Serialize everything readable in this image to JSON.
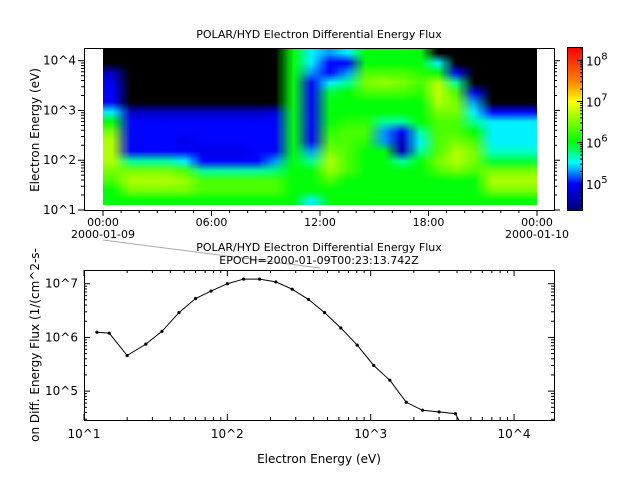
{
  "chart_data": [
    {
      "type": "heatmap",
      "title": "POLAR/HYD  Electron Differential Energy Flux",
      "xlabel": "",
      "ylabel": "Electron Energy (eV)",
      "x_ticks": [
        {
          "time": "00:00",
          "date": "2000-01-09"
        },
        {
          "time": "06:00",
          "date": ""
        },
        {
          "time": "12:00",
          "date": ""
        },
        {
          "time": "18:00",
          "date": ""
        },
        {
          "time": "00:00",
          "date": "2000-01-10"
        }
      ],
      "xlim_hours": [
        0,
        24
      ],
      "ylim": [
        10,
        18000
      ],
      "y_log": true,
      "y_ticks": [
        "10^1",
        "10^2",
        "10^3",
        "10^4"
      ],
      "colorbar": {
        "log": true,
        "range": [
          23000,
          200000000
        ],
        "ticks": [
          "10^5",
          "10^6",
          "10^7",
          "10^8"
        ],
        "colormap": [
          "#00007f",
          "#0000ff",
          "#00ffff",
          "#00ff00",
          "#ffff00",
          "#ff8000",
          "#ff0000"
        ],
        "missing_color": "#000000"
      },
      "energies": [
        13,
        20,
        30,
        50,
        80,
        130,
        200,
        320,
        500,
        800,
        1300,
        2000,
        3200,
        5000,
        8000,
        13000
      ],
      "hours": [
        0.5,
        1.5,
        2.5,
        3.5,
        4.5,
        5.5,
        6.5,
        7.5,
        8.5,
        9.5,
        10.5,
        11.5,
        12.5,
        13.5,
        14.5,
        15.5,
        16.5,
        17.5,
        18.5,
        19.5,
        20.5,
        21.5,
        22.5,
        23.5
      ],
      "flux_by_hour": [
        [
          1000000.0,
          1000000.0,
          2000000.0,
          3000000.0,
          5000000.0,
          5000000.0,
          5000000.0,
          3000000.0,
          1000000.0,
          300000.0,
          100000.0,
          100000.0,
          80000.0,
          50000.0,
          null,
          null
        ],
        [
          1000000.0,
          3000000.0,
          5000000.0,
          3000000.0,
          500000.0,
          100000.0,
          100000.0,
          100000.0,
          100000.0,
          50000.0,
          null,
          null,
          null,
          null,
          null,
          null
        ],
        [
          1000000.0,
          3000000.0,
          5000000.0,
          3000000.0,
          500000.0,
          100000.0,
          100000.0,
          100000.0,
          100000.0,
          50000.0,
          null,
          null,
          null,
          null,
          null,
          null
        ],
        [
          1000000.0,
          3000000.0,
          5000000.0,
          3000000.0,
          500000.0,
          100000.0,
          100000.0,
          100000.0,
          100000.0,
          50000.0,
          null,
          null,
          null,
          null,
          null,
          null
        ],
        [
          1000000.0,
          3000000.0,
          4000000.0,
          2000000.0,
          300000.0,
          100000.0,
          80000.0,
          100000.0,
          100000.0,
          50000.0,
          null,
          null,
          null,
          null,
          null,
          null
        ],
        [
          1000000.0,
          2000000.0,
          2000000.0,
          500000.0,
          100000.0,
          80000.0,
          100000.0,
          100000.0,
          100000.0,
          50000.0,
          null,
          null,
          null,
          null,
          null,
          null
        ],
        [
          1000000.0,
          2000000.0,
          2000000.0,
          500000.0,
          100000.0,
          80000.0,
          100000.0,
          100000.0,
          100000.0,
          50000.0,
          null,
          null,
          null,
          null,
          null,
          null
        ],
        [
          1000000.0,
          2000000.0,
          2000000.0,
          500000.0,
          100000.0,
          80000.0,
          100000.0,
          100000.0,
          100000.0,
          50000.0,
          null,
          null,
          null,
          null,
          null,
          null
        ],
        [
          1000000.0,
          2000000.0,
          2000000.0,
          500000.0,
          100000.0,
          100000.0,
          100000.0,
          100000.0,
          100000.0,
          50000.0,
          null,
          null,
          null,
          null,
          null,
          null
        ],
        [
          1000000.0,
          2000000.0,
          2000000.0,
          600000.0,
          200000.0,
          100000.0,
          100000.0,
          100000.0,
          100000.0,
          60000.0,
          null,
          null,
          null,
          null,
          null,
          null
        ],
        [
          1000000.0,
          1000000.0,
          1000000.0,
          1000000.0,
          1000000.0,
          1000000.0,
          1000000.0,
          1000000.0,
          1000000.0,
          1000000.0,
          1000000.0,
          1000000.0,
          1000000.0,
          1000000.0,
          1000000.0,
          1000000.0
        ],
        [
          300000.0,
          1000000.0,
          1000000.0,
          1000000.0,
          500000.0,
          200000.0,
          100000.0,
          100000.0,
          100000.0,
          100000.0,
          100000.0,
          100000.0,
          100000.0,
          200000.0,
          300000.0,
          300000.0
        ],
        [
          1000000.0,
          1000000.0,
          2000000.0,
          4000000.0,
          5000000.0,
          3000000.0,
          2000000.0,
          1500000.0,
          1000000.0,
          1000000.0,
          1000000.0,
          800000.0,
          300000.0,
          100000.0,
          100000.0,
          200000.0
        ],
        [
          1000000.0,
          1000000.0,
          1000000.0,
          2000000.0,
          2000000.0,
          2000000.0,
          2000000.0,
          2000000.0,
          1500000.0,
          1000000.0,
          1000000.0,
          1000000.0,
          500000.0,
          200000.0,
          100000.0,
          300000.0
        ],
        [
          1000000.0,
          1000000.0,
          1000000.0,
          1000000.0,
          1000000.0,
          1000000.0,
          1500000.0,
          2000000.0,
          1500000.0,
          1000000.0,
          1000000.0,
          2000000.0,
          3000000.0,
          2000000.0,
          1000000.0,
          1000000.0
        ],
        [
          1000000.0,
          1000000.0,
          1000000.0,
          1000000.0,
          1000000.0,
          1000000.0,
          200000.0,
          200000.0,
          500000.0,
          1000000.0,
          1000000.0,
          2000000.0,
          4000000.0,
          2000000.0,
          1000000.0,
          1000000.0
        ],
        [
          1000000.0,
          1000000.0,
          1000000.0,
          1000000.0,
          500000.0,
          50000.0,
          50000.0,
          100000.0,
          500000.0,
          1000000.0,
          1000000.0,
          2000000.0,
          3000000.0,
          2000000.0,
          1000000.0,
          1000000.0
        ],
        [
          1000000.0,
          1000000.0,
          1000000.0,
          1000000.0,
          1000000.0,
          500000.0,
          300000.0,
          500000.0,
          1000000.0,
          1000000.0,
          1000000.0,
          1500000.0,
          2000000.0,
          1500000.0,
          1000000.0,
          1000000.0
        ],
        [
          1000000.0,
          1000000.0,
          1000000.0,
          2000000.0,
          3000000.0,
          2000000.0,
          2000000.0,
          2000000.0,
          2000000.0,
          3000000.0,
          5000000.0,
          6000000.0,
          5000000.0,
          1000000.0,
          300000.0,
          null
        ],
        [
          1000000.0,
          1000000.0,
          1000000.0,
          3000000.0,
          5000000.0,
          5000000.0,
          3000000.0,
          2000000.0,
          2000000.0,
          3000000.0,
          3000000.0,
          2000000.0,
          500000.0,
          100000.0,
          null,
          null
        ],
        [
          1000000.0,
          1000000.0,
          1000000.0,
          2000000.0,
          3000000.0,
          3000000.0,
          2000000.0,
          1000000.0,
          500000.0,
          300000.0,
          200000.0,
          100000.0,
          null,
          null,
          null,
          null
        ],
        [
          1000000.0,
          3000000.0,
          5000000.0,
          3000000.0,
          800000.0,
          400000.0,
          300000.0,
          300000.0,
          300000.0,
          100000.0,
          null,
          null,
          null,
          null,
          null,
          null
        ],
        [
          1000000.0,
          3000000.0,
          5000000.0,
          3000000.0,
          800000.0,
          400000.0,
          300000.0,
          300000.0,
          300000.0,
          100000.0,
          null,
          null,
          null,
          null,
          null,
          null
        ],
        [
          1000000.0,
          3000000.0,
          5000000.0,
          3000000.0,
          800000.0,
          400000.0,
          300000.0,
          300000.0,
          300000.0,
          100000.0,
          null,
          null,
          null,
          null,
          null,
          null
        ]
      ]
    },
    {
      "type": "line",
      "title": "POLAR/HYD  Electron Differential Energy Flux",
      "subtitle": "EPOCH=2000-01-09T00:23:13.742Z",
      "xlabel": "Electron Energy (eV)",
      "ylabel": "on Diff. Energy Flux (1/(cm^2-s-",
      "x_log": true,
      "y_log": true,
      "xlim": [
        10,
        19000
      ],
      "ylim": [
        29000,
        18000000
      ],
      "x_ticks": [
        "10^1",
        "10^2",
        "10^3",
        "10^4"
      ],
      "y_ticks": [
        "10^5",
        "10^6",
        "10^7"
      ],
      "x": [
        12.3,
        15,
        20,
        27,
        35,
        46,
        60,
        77,
        100,
        130,
        168,
        218,
        283,
        368,
        477,
        619,
        805,
        1050,
        1360,
        1770,
        2300,
        3000,
        3900,
        4700
      ],
      "y": [
        1250000.0,
        1200000.0,
        460000.0,
        750000.0,
        1300000.0,
        2900000.0,
        5300000.0,
        7300000.0,
        10000000.0,
        12200000.0,
        12200000.0,
        10800000.0,
        7900000.0,
        5100000.0,
        2900000.0,
        1500000.0,
        720000.0,
        300000.0,
        160000.0,
        62000.0,
        44000.0,
        41000.0,
        38000.0,
        15000.0
      ]
    }
  ]
}
